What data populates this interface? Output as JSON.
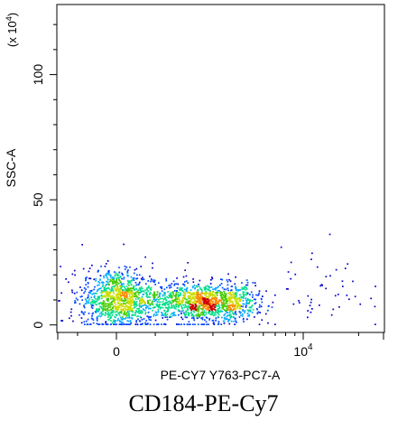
{
  "caption": "CD184-PE-Cy7",
  "chart_data": {
    "type": "scatter",
    "style": "density dot plot (blue-cyan-green-yellow-red heat colouring)",
    "title": "",
    "xlabel": "PE-CY7 Y763-PC7-A",
    "ylabel": "SSC-A",
    "y_multiplier_label": "(x 10^4)",
    "x_scale": "biexponential (linear near zero, log above)",
    "x_ticks": [
      {
        "value": 0,
        "label": "0"
      },
      {
        "value": 10000,
        "label": "10^4"
      }
    ],
    "y_ticks": [
      {
        "value": 0,
        "label": "0"
      },
      {
        "value": 50,
        "label": "50"
      },
      {
        "value": 100,
        "label": "100"
      }
    ],
    "ylim": [
      -3,
      128
    ],
    "grid": false,
    "legend": "none",
    "density_colors": [
      "#0000cc",
      "#0044ff",
      "#00aaff",
      "#00dd88",
      "#44cc00",
      "#ccdd00",
      "#ff8800",
      "#cc0000"
    ],
    "populations": [
      {
        "x_center": 2500,
        "x_spread": 1400,
        "y_center": 9,
        "y_spread": 4,
        "relative_density": 1.0
      },
      {
        "x_center": 0,
        "x_spread": 450,
        "y_center": 11,
        "y_spread": 6,
        "relative_density": 0.65
      },
      {
        "x_center": 10000,
        "x_spread": 6000,
        "y_center": 15,
        "y_spread": 9,
        "relative_density": 0.05
      }
    ]
  }
}
